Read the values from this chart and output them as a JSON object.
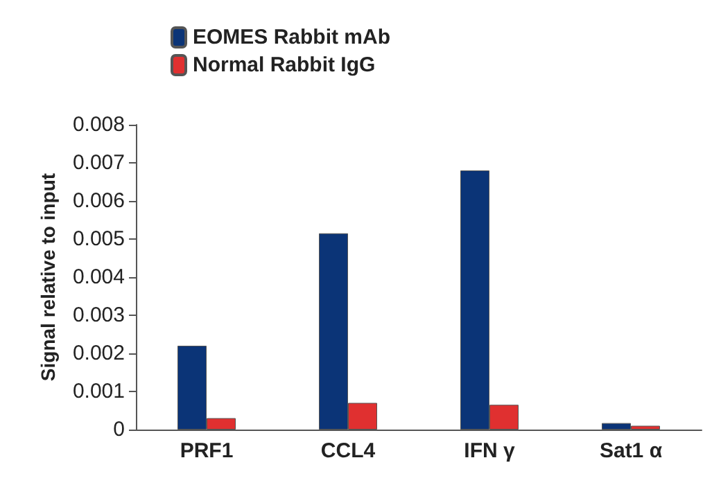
{
  "chart_data": {
    "type": "bar",
    "ylabel": "Signal relative to input",
    "categories": [
      "PRF1",
      "CCL4",
      "IFN γ",
      "Sat1 α"
    ],
    "series": [
      {
        "name": "EOMES Rabbit mAb",
        "color": "#0b3477",
        "values": [
          0.0022,
          0.00515,
          0.0068,
          0.00017
        ]
      },
      {
        "name": "Normal Rabbit IgG",
        "color": "#e03030",
        "values": [
          0.0003,
          0.0007,
          0.00065,
          0.0001
        ]
      }
    ],
    "ylim": [
      0,
      0.008
    ],
    "yticks": [
      0,
      0.001,
      0.002,
      0.003,
      0.004,
      0.005,
      0.006,
      0.007,
      0.008
    ],
    "legend": "top left",
    "grid": false
  }
}
